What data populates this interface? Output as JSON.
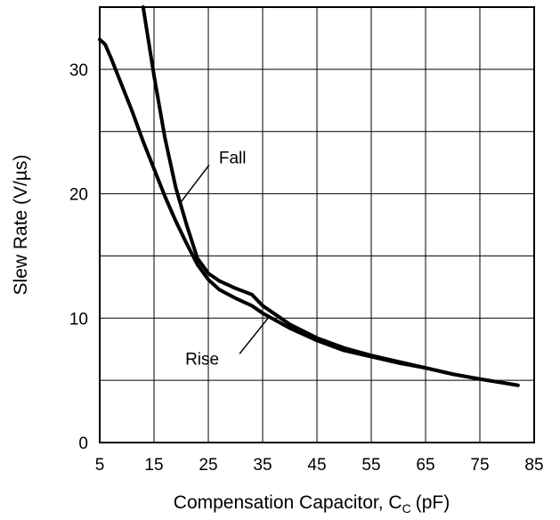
{
  "chart_data": {
    "type": "line",
    "xlabel_main": "Compensation Capacitor, C",
    "xlabel_sub": "C",
    "xlabel_unit": "(pF)",
    "ylabel": "Slew Rate (V/µs)",
    "xlim": [
      5,
      85
    ],
    "ylim": [
      0,
      35
    ],
    "x_ticks": [
      5,
      15,
      25,
      35,
      45,
      55,
      65,
      75,
      85
    ],
    "x_tick_labels": [
      "5",
      "15",
      "25",
      "35",
      "45",
      "55",
      "65",
      "75",
      "85"
    ],
    "y_ticks": [
      0,
      10,
      20,
      30
    ],
    "y_tick_labels": [
      "0",
      "10",
      "20",
      "30"
    ],
    "x_grid": [
      5,
      15,
      25,
      35,
      45,
      55,
      65,
      75,
      85
    ],
    "y_grid": [
      0,
      5,
      10,
      15,
      20,
      25,
      30,
      35
    ],
    "grid": true,
    "series": [
      {
        "name": "Fall",
        "x": [
          13,
          15,
          17,
          19,
          21,
          23,
          25,
          27,
          30,
          33,
          35,
          40,
          45,
          50,
          55,
          60,
          65,
          70,
          75,
          82
        ],
        "y": [
          35,
          29.5,
          24.5,
          20.5,
          17.5,
          14.8,
          13.6,
          13,
          12.4,
          11.9,
          11,
          9.5,
          8.4,
          7.6,
          7,
          6.5,
          6,
          5.5,
          5.1,
          4.6
        ]
      },
      {
        "name": "Rise",
        "x": [
          5,
          6,
          7,
          9,
          11,
          13,
          15,
          17,
          19,
          21,
          23,
          25,
          27,
          30,
          33,
          35,
          40,
          45,
          50,
          55,
          60,
          65,
          70,
          75,
          82
        ],
        "y": [
          32.4,
          32,
          31,
          28.8,
          26.6,
          24.2,
          22,
          19.8,
          17.8,
          16,
          14.3,
          13.1,
          12.3,
          11.6,
          11,
          10.4,
          9.2,
          8.2,
          7.4,
          6.9,
          6.4,
          6,
          5.5,
          5.1,
          4.6
        ]
      }
    ],
    "annotations": [
      {
        "text": "Fall",
        "series": "Fall",
        "point_x": 19.9,
        "point_y": 19.3
      },
      {
        "text": "Rise",
        "series": "Rise",
        "point_x": 36,
        "point_y": 10
      }
    ]
  }
}
